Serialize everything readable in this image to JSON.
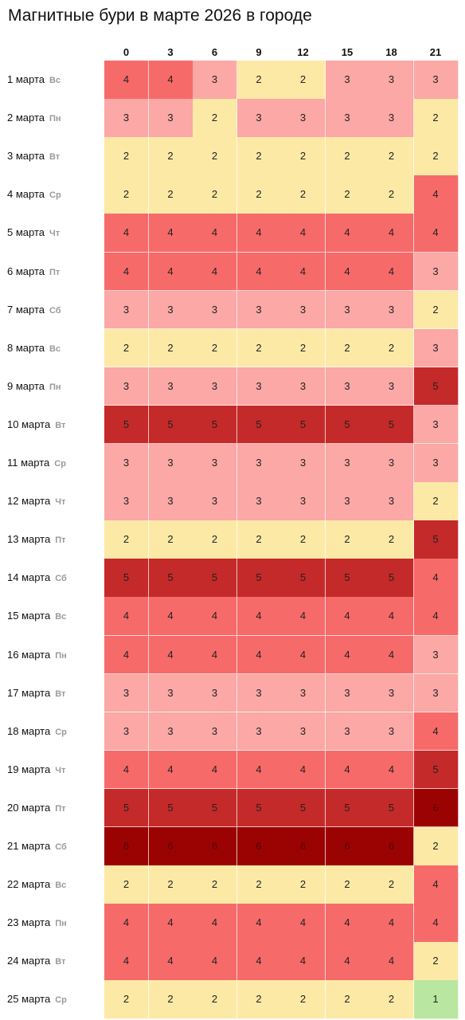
{
  "title": "Магнитные бури в марте 2026 в городе",
  "chart_data": {
    "type": "heatmap",
    "title": "Магнитные бури в марте 2026 в городе",
    "x": [
      "0",
      "3",
      "6",
      "9",
      "12",
      "15",
      "18",
      "21"
    ],
    "rows": [
      {
        "date": "1 марта",
        "dow": "Вс",
        "values": [
          4,
          4,
          3,
          2,
          2,
          3,
          3,
          3
        ]
      },
      {
        "date": "2 марта",
        "dow": "Пн",
        "values": [
          3,
          3,
          2,
          3,
          3,
          3,
          3,
          2
        ]
      },
      {
        "date": "3 марта",
        "dow": "Вт",
        "values": [
          2,
          2,
          2,
          2,
          2,
          2,
          2,
          2
        ]
      },
      {
        "date": "4 марта",
        "dow": "Ср",
        "values": [
          2,
          2,
          2,
          2,
          2,
          2,
          2,
          4
        ]
      },
      {
        "date": "5 марта",
        "dow": "Чт",
        "values": [
          4,
          4,
          4,
          4,
          4,
          4,
          4,
          4
        ]
      },
      {
        "date": "6 марта",
        "dow": "Пт",
        "values": [
          4,
          4,
          4,
          4,
          4,
          4,
          4,
          3
        ]
      },
      {
        "date": "7 марта",
        "dow": "Сб",
        "values": [
          3,
          3,
          3,
          3,
          3,
          3,
          3,
          2
        ]
      },
      {
        "date": "8 марта",
        "dow": "Вс",
        "values": [
          2,
          2,
          2,
          2,
          2,
          2,
          2,
          3
        ]
      },
      {
        "date": "9 марта",
        "dow": "Пн",
        "values": [
          3,
          3,
          3,
          3,
          3,
          3,
          3,
          5
        ]
      },
      {
        "date": "10 марта",
        "dow": "Вт",
        "values": [
          5,
          5,
          5,
          5,
          5,
          5,
          5,
          3
        ]
      },
      {
        "date": "11 марта",
        "dow": "Ср",
        "values": [
          3,
          3,
          3,
          3,
          3,
          3,
          3,
          3
        ]
      },
      {
        "date": "12 марта",
        "dow": "Чт",
        "values": [
          3,
          3,
          3,
          3,
          3,
          3,
          3,
          2
        ]
      },
      {
        "date": "13 марта",
        "dow": "Пт",
        "values": [
          2,
          2,
          2,
          2,
          2,
          2,
          2,
          5
        ]
      },
      {
        "date": "14 марта",
        "dow": "Сб",
        "values": [
          5,
          5,
          5,
          5,
          5,
          5,
          5,
          4
        ]
      },
      {
        "date": "15 марта",
        "dow": "Вс",
        "values": [
          4,
          4,
          4,
          4,
          4,
          4,
          4,
          4
        ]
      },
      {
        "date": "16 марта",
        "dow": "Пн",
        "values": [
          4,
          4,
          4,
          4,
          4,
          4,
          4,
          3
        ]
      },
      {
        "date": "17 марта",
        "dow": "Вт",
        "values": [
          3,
          3,
          3,
          3,
          3,
          3,
          3,
          3
        ]
      },
      {
        "date": "18 марта",
        "dow": "Ср",
        "values": [
          3,
          3,
          3,
          3,
          3,
          3,
          3,
          4
        ]
      },
      {
        "date": "19 марта",
        "dow": "Чт",
        "values": [
          4,
          4,
          4,
          4,
          4,
          4,
          4,
          5
        ]
      },
      {
        "date": "20 марта",
        "dow": "Пт",
        "values": [
          5,
          5,
          5,
          5,
          5,
          5,
          5,
          6
        ]
      },
      {
        "date": "21 марта",
        "dow": "Сб",
        "values": [
          6,
          6,
          6,
          6,
          6,
          6,
          6,
          2
        ]
      },
      {
        "date": "22 марта",
        "dow": "Вс",
        "values": [
          2,
          2,
          2,
          2,
          2,
          2,
          2,
          4
        ]
      },
      {
        "date": "23 марта",
        "dow": "Пн",
        "values": [
          4,
          4,
          4,
          4,
          4,
          4,
          4,
          4
        ]
      },
      {
        "date": "24 марта",
        "dow": "Вт",
        "values": [
          4,
          4,
          4,
          4,
          4,
          4,
          4,
          2
        ]
      },
      {
        "date": "25 марта",
        "dow": "Ср",
        "values": [
          2,
          2,
          2,
          2,
          2,
          2,
          2,
          1
        ]
      }
    ],
    "colors": {
      "1": "#b9e6a0",
      "2": "#fde9a6",
      "3": "#fba8a6",
      "4": "#f76a6a",
      "5": "#c42a2a",
      "6": "#9b0303"
    }
  }
}
